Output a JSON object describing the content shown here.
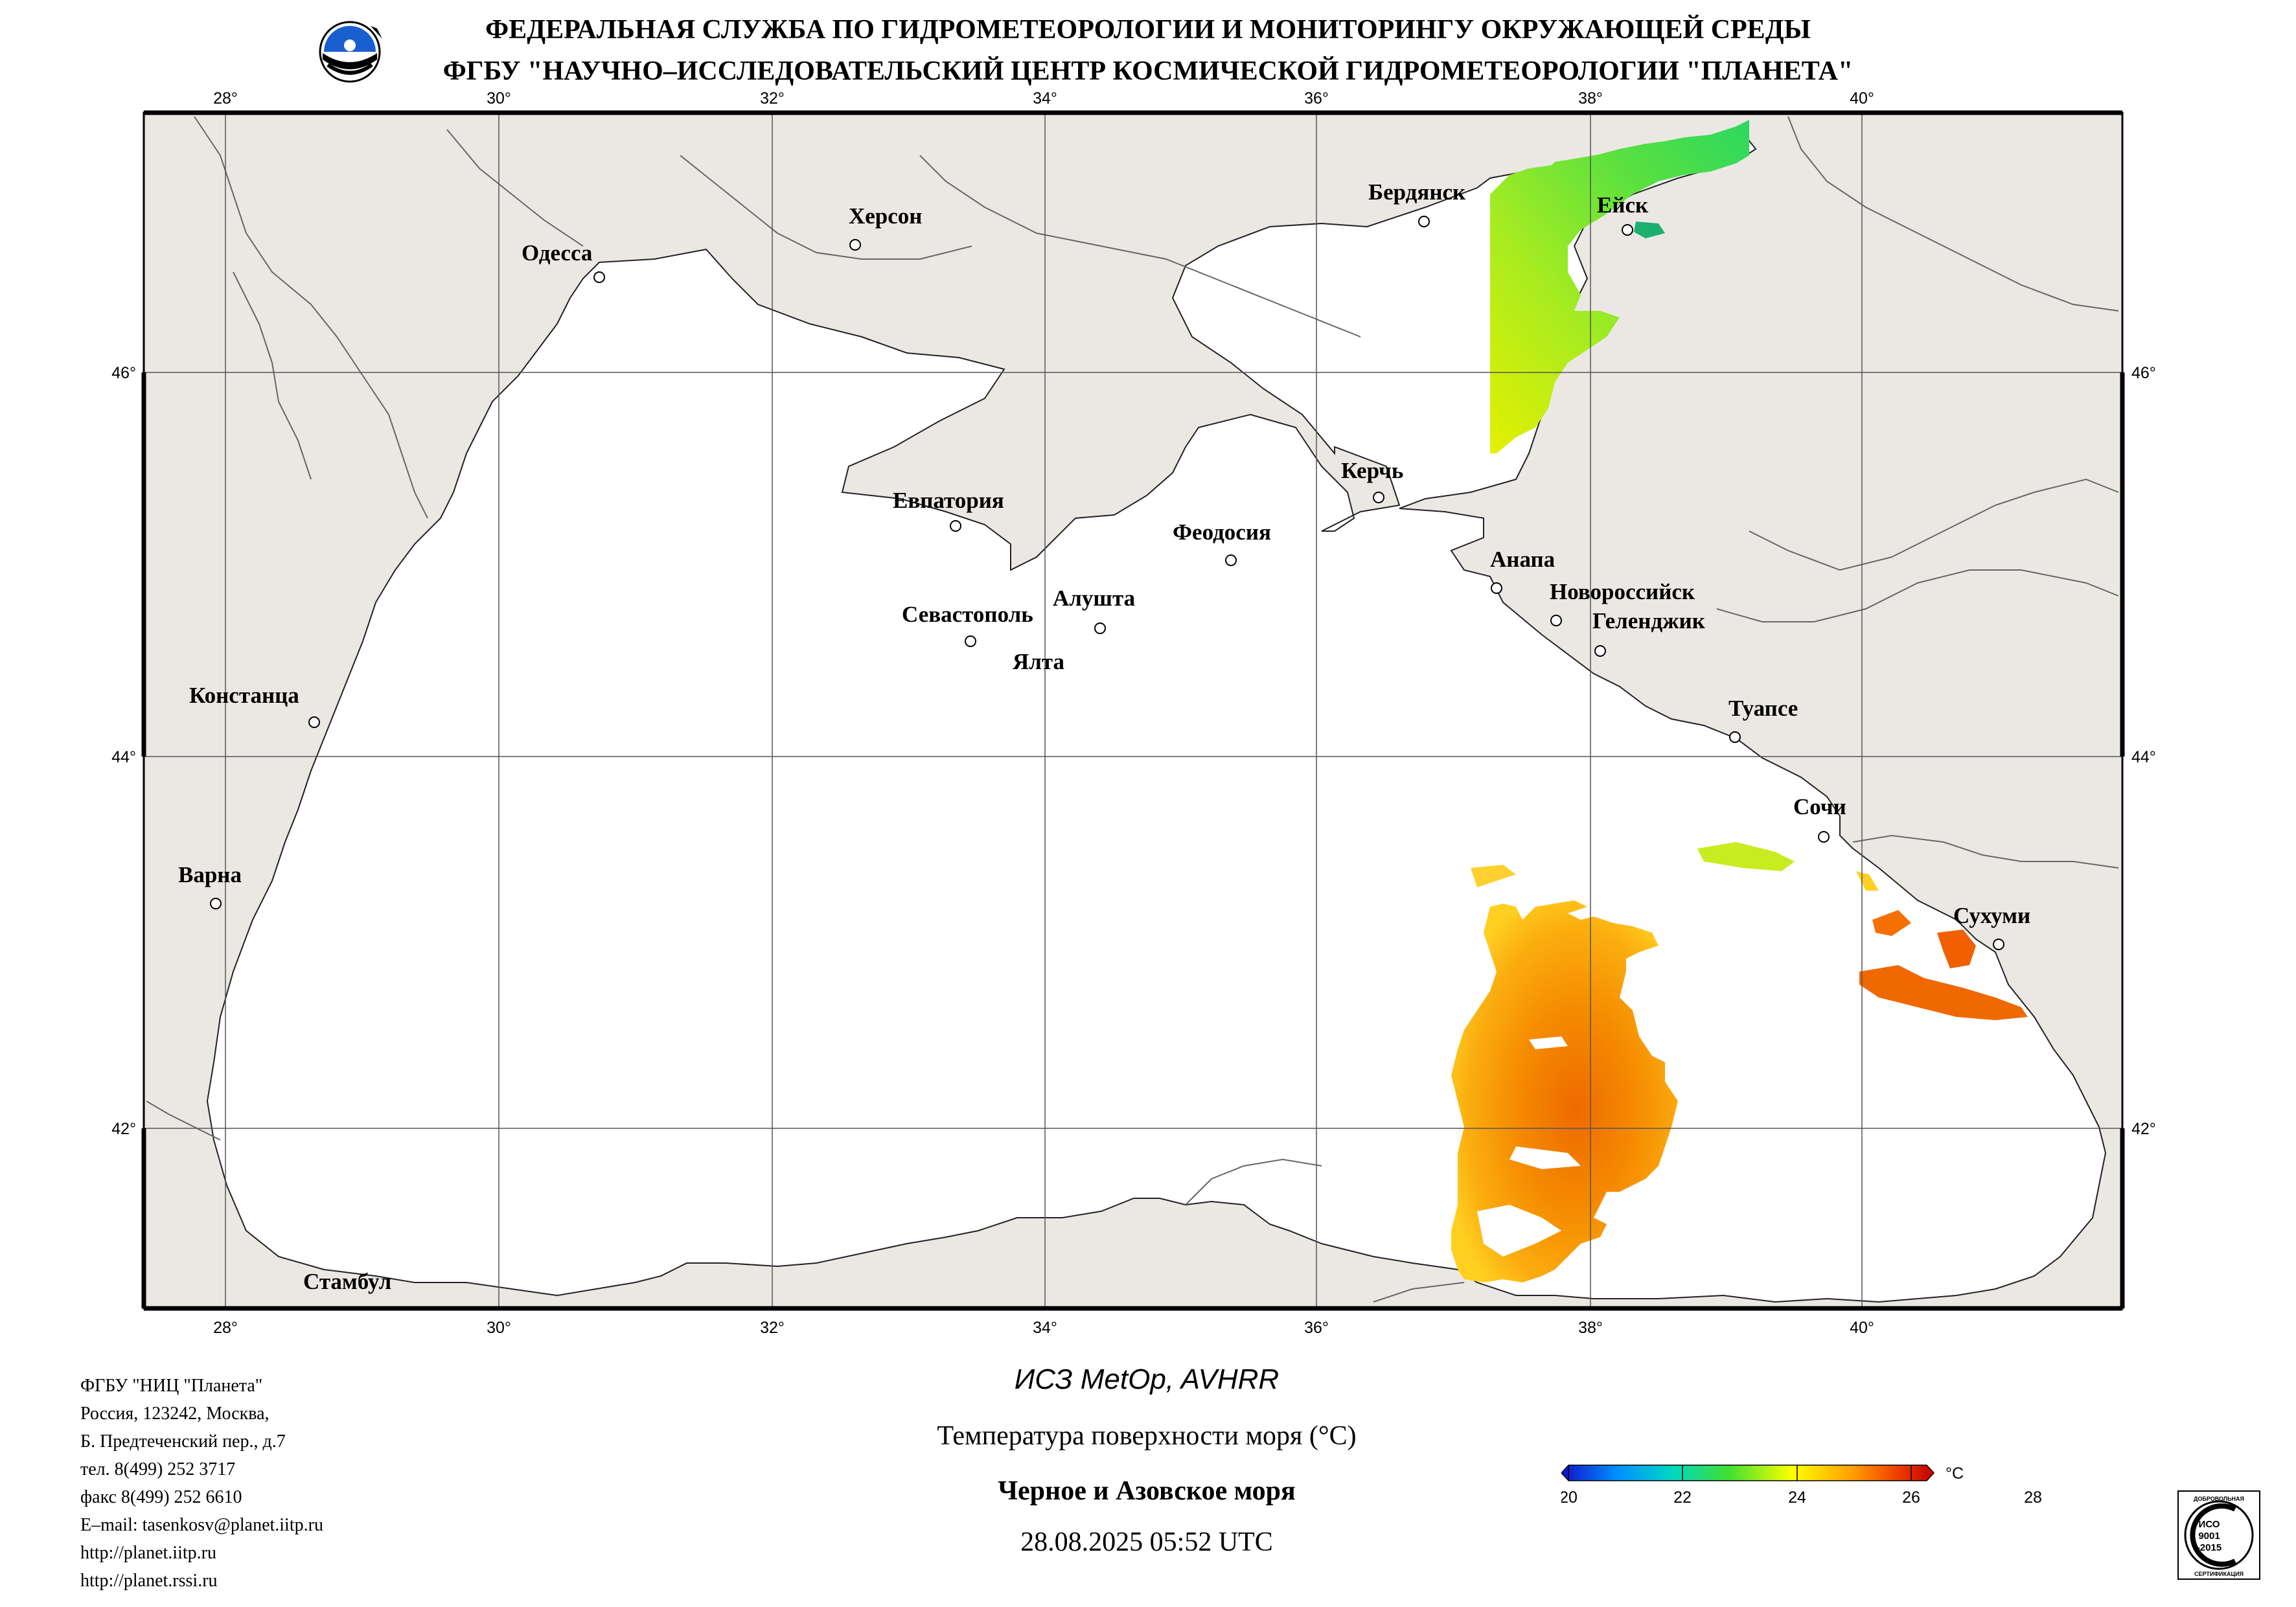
{
  "header": {
    "line1": "ФЕДЕРАЛЬНАЯ СЛУЖБА ПО ГИДРОМЕТЕОРОЛОГИИ И МОНИТОРИНГУ ОКРУЖАЮЩЕЙ СРЕДЫ",
    "line2": "ФГБУ \"НАУЧНО–ИССЛЕДОВАТЕЛЬСКИЙ ЦЕНТР КОСМИЧЕСКОЙ ГИДРОМЕТЕОРОЛОГИИ \"ПЛАНЕТА\""
  },
  "map": {
    "lon_ticks": [
      "28°",
      "30°",
      "32°",
      "34°",
      "36°",
      "38°",
      "40°"
    ],
    "lat_ticks": [
      "46°",
      "44°",
      "42°"
    ],
    "cities": [
      "Одесса",
      "Херсон",
      "Бердянск",
      "Ейск",
      "Евпатория",
      "Феодосия",
      "Керчь",
      "Анапа",
      "Новороссийск",
      "Геленджик",
      "Севастополь",
      "Алушта",
      "Ялта",
      "Констанца",
      "Туапсе",
      "Сочи",
      "Варна",
      "Сухуми",
      "Стамбул"
    ],
    "colors": {
      "land": "#ebe8e4",
      "sea": "#ffffff",
      "grid": "#555555"
    }
  },
  "footer": {
    "org_lines": [
      "ФГБУ \"НИЦ \"Планета\"",
      "Россия, 123242, Москва,",
      "Б. Предтеченский пер., д.7",
      "тел. 8(499) 252 3717",
      "факс 8(499) 252 6610",
      "E–mail: tasenkosv@planet.iitp.ru",
      "http://planet.iitp.ru",
      "http://planet.rssi.ru"
    ],
    "satellite": "ИСЗ MetOp, AVHRR",
    "parameter": "Температура поверхности моря (°C)",
    "region": "Черное и Азовское моря",
    "datetime": "28.08.2025 05:52 UTC"
  },
  "legend": {
    "unit": "°C",
    "ticks": [
      "20",
      "22",
      "24",
      "26",
      "28"
    ],
    "min": 20,
    "max": 28,
    "colors": [
      "#1010c8",
      "#00c8ff",
      "#20e040",
      "#ffff00",
      "#ffa000",
      "#d80000"
    ]
  },
  "iso_badge": {
    "top_text": "ДОБРОВОЛЬНАЯ",
    "text1": "ИСО",
    "text2": "9001",
    "text3": "-2015",
    "bottom_text": "СЕРТИФИКАЦИЯ"
  }
}
